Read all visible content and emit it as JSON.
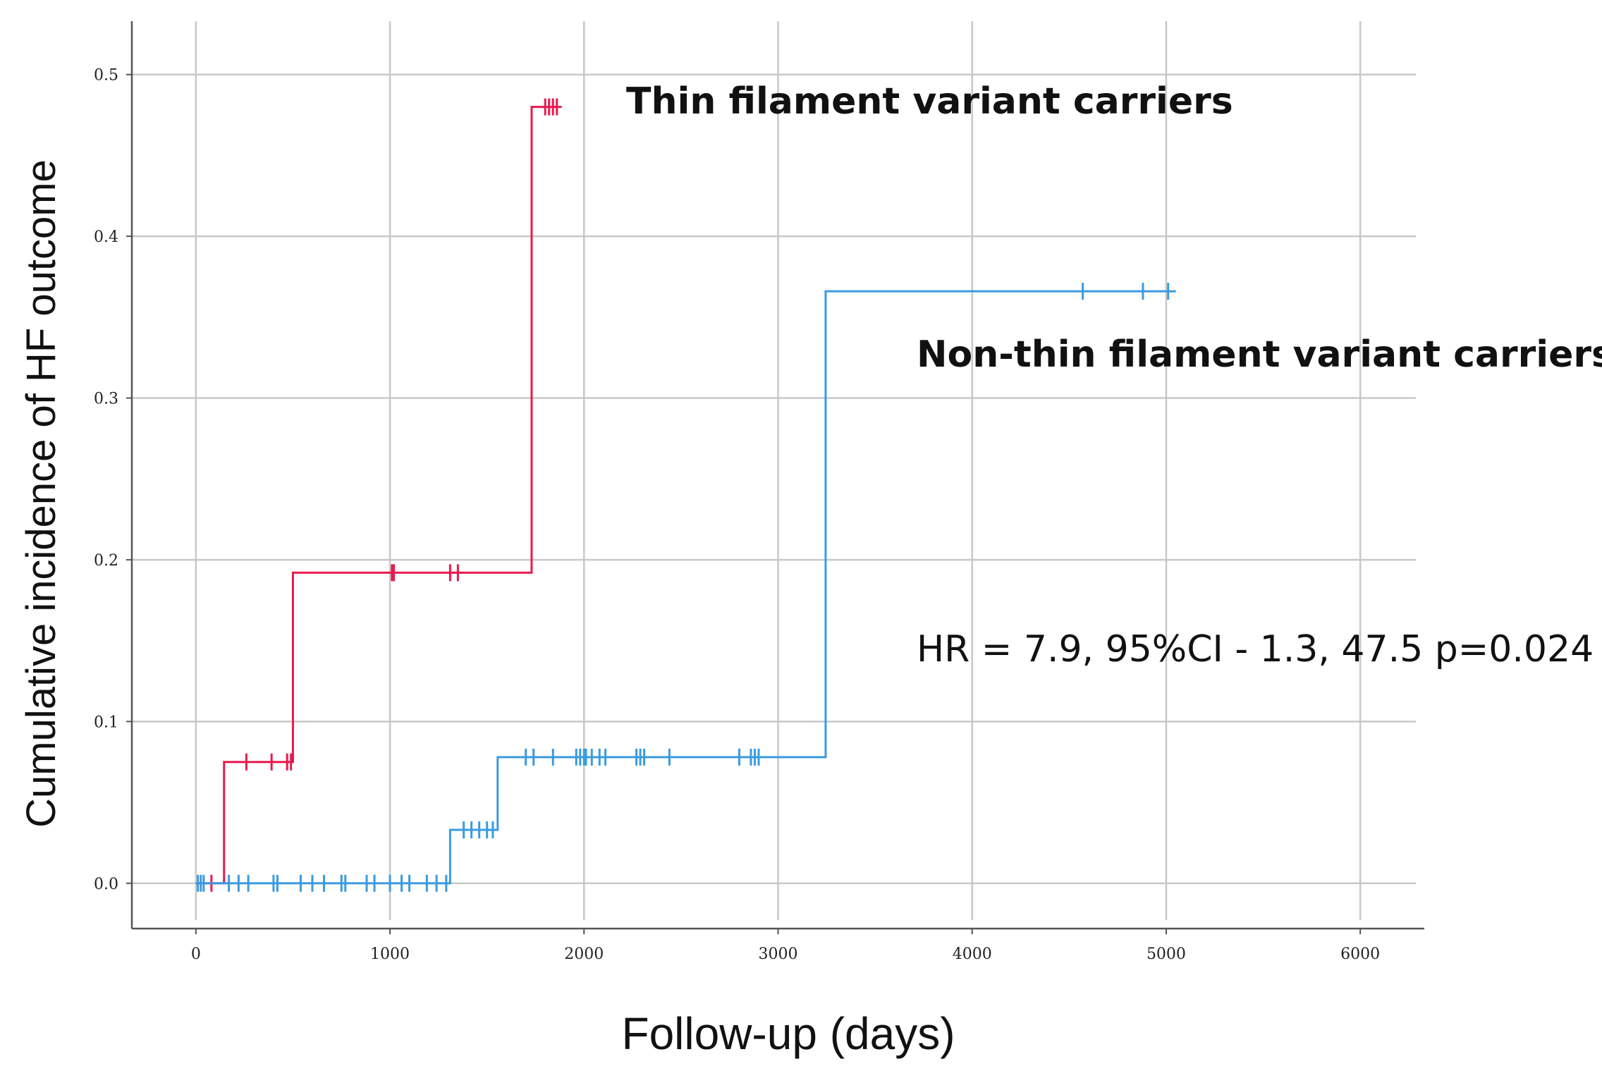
{
  "chart_data": {
    "type": "line",
    "subtype": "step",
    "xlabel": "Follow-up (days)",
    "ylabel": "Cumulative incidence of HF outcome",
    "xlim": [
      -330,
      6330
    ],
    "ylim": [
      -0.028,
      0.533
    ],
    "x_ticks": [
      0,
      1000,
      2000,
      3000,
      4000,
      5000,
      6000
    ],
    "x_tick_labels": [
      "0",
      "1000",
      "2000",
      "3000",
      "4000",
      "5000",
      "6000"
    ],
    "y_ticks": [
      0.0,
      0.1,
      0.2,
      0.3,
      0.4,
      0.5
    ],
    "y_tick_labels": [
      "0.0",
      "0.1",
      "0.2",
      "0.3",
      "0.4",
      "0.5"
    ],
    "grid": true,
    "series": [
      {
        "name": "Thin filament variant carriers",
        "color": "#e8194b",
        "steps": [
          [
            0,
            0.0
          ],
          [
            145,
            0.075
          ],
          [
            500,
            0.192
          ],
          [
            1730,
            0.48
          ],
          [
            1885,
            0.48
          ]
        ],
        "censor_x": [
          80,
          260,
          390,
          470,
          490,
          1010,
          1020,
          1310,
          1350,
          1800,
          1820,
          1840,
          1860
        ]
      },
      {
        "name": "Non-thin filament variant carriers",
        "color": "#3a9be0",
        "steps": [
          [
            0,
            0.0
          ],
          [
            1310,
            0.033
          ],
          [
            1555,
            0.078
          ],
          [
            3245,
            0.366
          ],
          [
            5050,
            0.366
          ]
        ],
        "censor_x": [
          10,
          25,
          40,
          170,
          220,
          270,
          400,
          420,
          540,
          600,
          660,
          750,
          770,
          880,
          920,
          1000,
          1060,
          1100,
          1190,
          1240,
          1290,
          1380,
          1420,
          1460,
          1500,
          1530,
          1700,
          1740,
          1840,
          1960,
          1980,
          2000,
          2010,
          2040,
          2080,
          2110,
          2270,
          2290,
          2310,
          2440,
          2800,
          2860,
          2880,
          2900,
          4570,
          4880,
          5010
        ]
      }
    ],
    "annotations": {
      "thin_label": "Thin filament variant carriers",
      "nonthin_label": "Non-thin filament variant carriers",
      "stats": "HR = 7.9, 95%CI - 1.3, 47.5 p=0.024"
    }
  }
}
